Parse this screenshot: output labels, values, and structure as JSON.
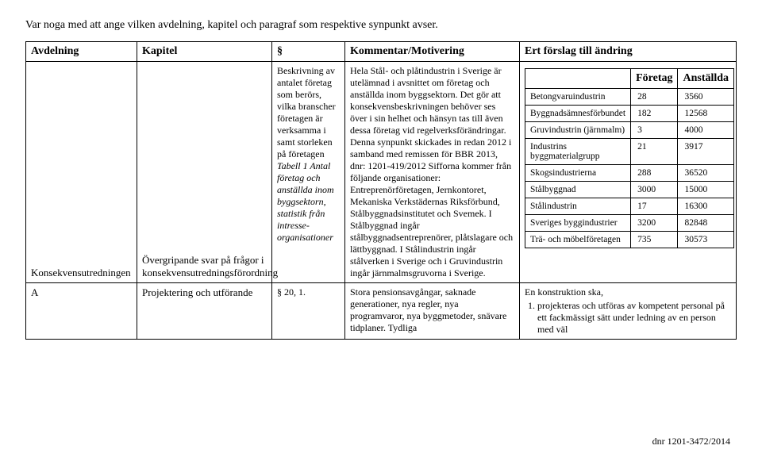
{
  "intro": "Var noga med att ange vilken avdelning, kapitel och paragraf som respektive synpunkt avser.",
  "headers": {
    "a": "Avdelning",
    "b": "Kapitel",
    "c": "§",
    "d": "Kommentar/Motivering",
    "e": "Ert förslag till ändring"
  },
  "row1": {
    "a": "Konsekvensutredningen",
    "b": "Övergripande svar på frågor i konsekvensutredningsförordning",
    "c_pre": "Beskrivning av antalet företag som berörs, vilka branscher företagen är verksamma i samt storleken på företagen ",
    "c_em": "Tabell 1 Antal företag och anställda inom byggsektorn, statistik från intresse-organisationer",
    "d": "Hela Stål- och plåtindustrin i Sverige är utelämnad i avsnittet om företag och anställda inom byggsektorn. Det gör att konsekvensbeskrivningen behöver ses över i sin helhet och hänsyn tas till även dessa företag vid regelverksförändringar. Denna synpunkt skickades in redan 2012 i samband med remissen för BBR 2013, dnr: 1201-419/2012\nSifforna kommer från följande organisationer:\nEntreprenörföretagen, Jernkontoret, Mekaniska Verkstädernas Riksförbund, Stålbyggnadsinstitutet och Svemek. I Stålbyggnad ingår stålbyggnadsentreprenörer, plåtslagare och lättbyggnad.\nI Stålindustrin ingår stålverken i Sverige och i Gruvindustrin ingår järnmalmsgruvorna i Sverige.",
    "e_table_headers": {
      "h1": "",
      "h2": "Företag",
      "h3": "Anställda"
    },
    "e_rows": [
      {
        "label": "Betongvaruindustrin",
        "c1": "28",
        "c2": "3560"
      },
      {
        "label": "Byggnadsämnesförbundet",
        "c1": "182",
        "c2": "12568"
      },
      {
        "label": "Gruvindustrin (järnmalm)",
        "c1": "3",
        "c2": "4000"
      },
      {
        "label": "Industrins byggmaterialgrupp",
        "c1": "21",
        "c2": "3917"
      },
      {
        "label": "Skogsindustrierna",
        "c1": "288",
        "c2": "36520"
      },
      {
        "label": "Stålbyggnad",
        "c1": "3000",
        "c2": "15000"
      },
      {
        "label": "Stålindustrin",
        "c1": "17",
        "c2": "16300"
      },
      {
        "label": "Sveriges byggindustrier",
        "c1": "3200",
        "c2": "82848"
      },
      {
        "label": "Trä- och möbelföretagen",
        "c1": "735",
        "c2": "30573"
      }
    ]
  },
  "row2": {
    "a": "A",
    "b": "Projektering och utförande",
    "c": "§ 20, 1.",
    "d": "Stora pensionsavgångar, saknade generationer, nya regler, nya programvaror, nya byggmetoder, snävare tidplaner. Tydliga",
    "e_intro": "En konstruktion ska,",
    "e_li": "projekteras och utföras av kompetent personal på ett fackmässigt sätt under ledning av en person med väl"
  },
  "footer": "dnr 1201-3472/2014"
}
